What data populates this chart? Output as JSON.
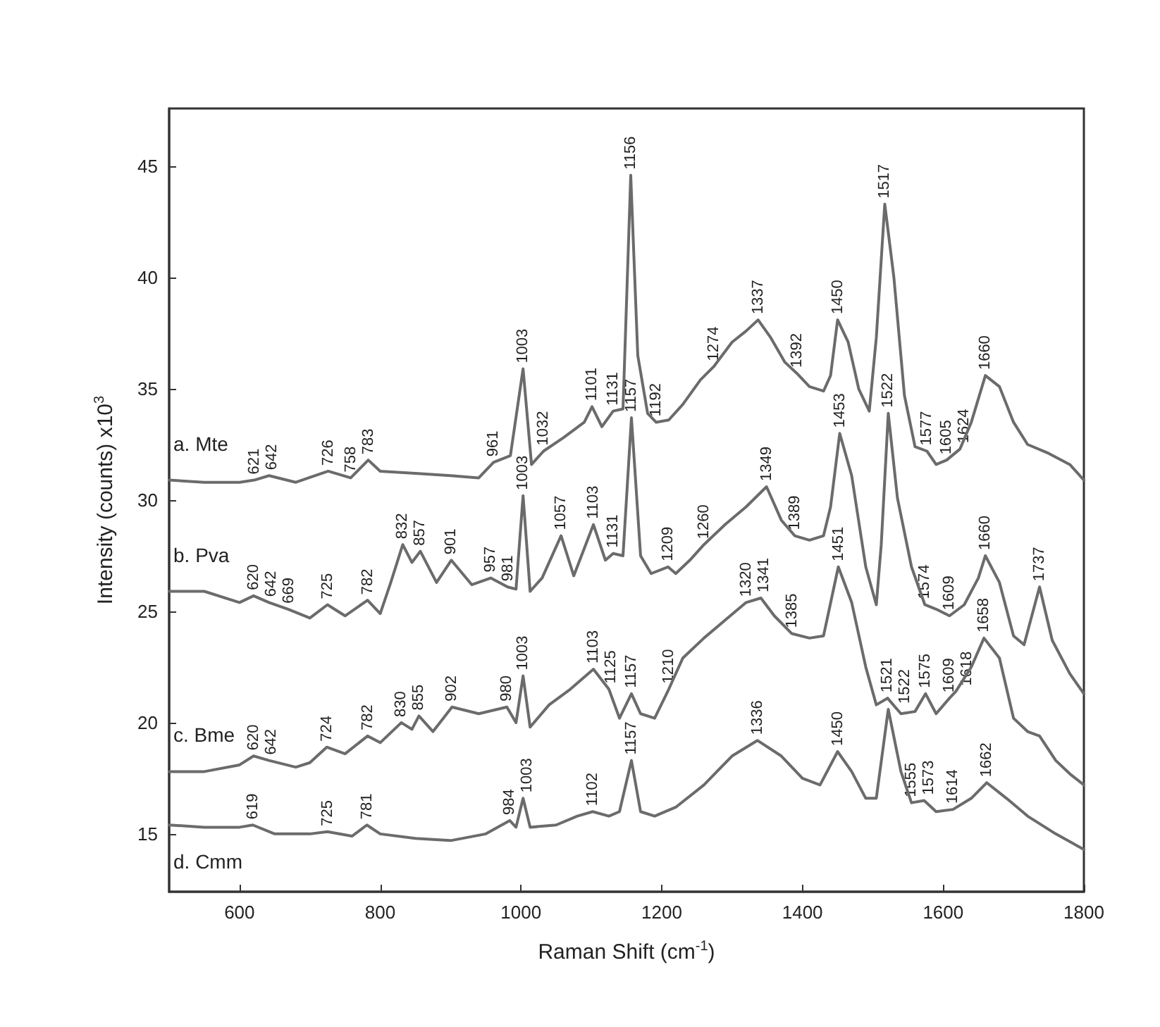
{
  "chart_data": {
    "type": "line",
    "xlabel": "Raman Shift (cm$^{-1}$)",
    "ylabel": "Intensity (counts) x10$^{3}$",
    "xlim": [
      500,
      1800
    ],
    "xticks": [
      600,
      800,
      1000,
      1200,
      1400,
      1600,
      1800
    ],
    "ylim": [
      12.4,
      47.6
    ],
    "yticks": [
      15,
      20,
      25,
      30,
      35,
      40,
      45
    ],
    "grid": false,
    "marker": "none",
    "line_style": "solid",
    "series": [
      {
        "name": "a. Mte",
        "color": "#6b6b6b",
        "x": [
          500,
          550,
          600,
          621,
          642,
          680,
          726,
          758,
          783,
          800,
          850,
          900,
          940,
          961,
          985,
          1003,
          1015,
          1032,
          1060,
          1090,
          1101,
          1115,
          1131,
          1145,
          1156,
          1166,
          1180,
          1192,
          1210,
          1230,
          1255,
          1274,
          1300,
          1320,
          1337,
          1355,
          1375,
          1392,
          1410,
          1430,
          1440,
          1450,
          1465,
          1480,
          1495,
          1505,
          1517,
          1530,
          1545,
          1560,
          1577,
          1590,
          1605,
          1624,
          1640,
          1660,
          1680,
          1700,
          1720,
          1750,
          1780,
          1800
        ],
        "values": [
          30.9,
          30.8,
          30.8,
          30.9,
          31.1,
          30.8,
          31.3,
          31.0,
          31.8,
          31.3,
          31.2,
          31.1,
          31.0,
          31.7,
          32.0,
          35.9,
          31.6,
          32.2,
          32.8,
          33.5,
          34.2,
          33.3,
          34.0,
          34.1,
          44.6,
          36.5,
          33.9,
          33.5,
          33.6,
          34.3,
          35.4,
          36.0,
          37.1,
          37.6,
          38.1,
          37.3,
          36.2,
          35.7,
          35.1,
          34.9,
          35.6,
          38.1,
          37.1,
          35.0,
          34.0,
          37.3,
          43.3,
          40.0,
          34.7,
          32.4,
          32.2,
          31.6,
          31.8,
          32.3,
          33.5,
          35.6,
          35.1,
          33.5,
          32.5,
          32.1,
          31.6,
          30.9
        ]
      },
      {
        "name": "b. Pva",
        "color": "#6b6b6b",
        "x": [
          500,
          550,
          600,
          620,
          642,
          669,
          700,
          725,
          750,
          782,
          800,
          815,
          832,
          845,
          857,
          880,
          901,
          930,
          957,
          981,
          993,
          1003,
          1013,
          1030,
          1057,
          1075,
          1103,
          1120,
          1131,
          1145,
          1157,
          1170,
          1185,
          1209,
          1220,
          1240,
          1260,
          1290,
          1320,
          1349,
          1370,
          1389,
          1410,
          1430,
          1440,
          1453,
          1470,
          1490,
          1505,
          1512,
          1522,
          1535,
          1555,
          1574,
          1590,
          1609,
          1630,
          1650,
          1660,
          1680,
          1700,
          1715,
          1737,
          1755,
          1780,
          1800
        ],
        "values": [
          25.9,
          25.9,
          25.4,
          25.7,
          25.4,
          25.1,
          24.7,
          25.3,
          24.8,
          25.5,
          24.9,
          26.3,
          28.0,
          27.2,
          27.7,
          26.3,
          27.3,
          26.2,
          26.5,
          26.1,
          26.0,
          30.2,
          25.9,
          26.5,
          28.4,
          26.6,
          28.9,
          27.3,
          27.6,
          27.5,
          33.7,
          27.5,
          26.7,
          27.0,
          26.7,
          27.3,
          28.0,
          28.9,
          29.7,
          30.6,
          29.1,
          28.4,
          28.2,
          28.4,
          29.7,
          33.0,
          31.1,
          27.0,
          25.3,
          28.0,
          33.9,
          30.1,
          27.0,
          25.3,
          25.1,
          24.8,
          25.3,
          26.5,
          27.5,
          26.3,
          23.9,
          23.5,
          26.1,
          23.7,
          22.2,
          21.3
        ]
      },
      {
        "name": "c. Bme",
        "color": "#6b6b6b",
        "x": [
          500,
          550,
          600,
          620,
          642,
          680,
          700,
          724,
          750,
          782,
          800,
          830,
          845,
          855,
          875,
          902,
          940,
          980,
          993,
          1003,
          1013,
          1040,
          1070,
          1103,
          1125,
          1140,
          1157,
          1170,
          1190,
          1210,
          1230,
          1260,
          1290,
          1320,
          1341,
          1360,
          1385,
          1410,
          1430,
          1451,
          1470,
          1490,
          1505,
          1521,
          1540,
          1560,
          1575,
          1590,
          1609,
          1618,
          1640,
          1658,
          1680,
          1700,
          1720,
          1737,
          1760,
          1780,
          1800
        ],
        "values": [
          17.8,
          17.8,
          18.1,
          18.5,
          18.3,
          18.0,
          18.2,
          18.9,
          18.6,
          19.4,
          19.1,
          20.0,
          19.7,
          20.3,
          19.6,
          20.7,
          20.4,
          20.7,
          20.0,
          22.1,
          19.8,
          20.8,
          21.5,
          22.4,
          21.5,
          20.2,
          21.3,
          20.4,
          20.2,
          21.5,
          22.9,
          23.8,
          24.6,
          25.4,
          25.6,
          24.8,
          24.0,
          23.8,
          23.9,
          27.0,
          25.4,
          22.5,
          20.8,
          21.1,
          20.4,
          20.5,
          21.3,
          20.4,
          21.1,
          21.4,
          22.5,
          23.8,
          22.9,
          20.2,
          19.6,
          19.4,
          18.3,
          17.7,
          17.2
        ]
      },
      {
        "name": "d. Cmm",
        "color": "#6b6b6b",
        "x": [
          500,
          550,
          600,
          619,
          650,
          700,
          725,
          760,
          781,
          800,
          850,
          900,
          950,
          984,
          993,
          1003,
          1013,
          1050,
          1080,
          1102,
          1125,
          1140,
          1157,
          1170,
          1190,
          1220,
          1260,
          1300,
          1336,
          1370,
          1400,
          1425,
          1450,
          1470,
          1490,
          1505,
          1522,
          1540,
          1555,
          1573,
          1590,
          1614,
          1640,
          1662,
          1690,
          1720,
          1760,
          1800
        ],
        "values": [
          15.4,
          15.3,
          15.3,
          15.4,
          15.0,
          15.0,
          15.1,
          14.9,
          15.4,
          15.0,
          14.8,
          14.7,
          15.0,
          15.6,
          15.3,
          16.6,
          15.3,
          15.4,
          15.8,
          16.0,
          15.8,
          16.0,
          18.3,
          16.0,
          15.8,
          16.2,
          17.2,
          18.5,
          19.2,
          18.5,
          17.5,
          17.2,
          18.7,
          17.8,
          16.6,
          16.6,
          20.6,
          17.8,
          16.4,
          16.5,
          16.0,
          16.1,
          16.6,
          17.3,
          16.6,
          15.8,
          15.0,
          14.3
        ]
      }
    ],
    "annotations": [
      {
        "text": "621",
        "x": 621,
        "y": 30.9
      },
      {
        "text": "642",
        "x": 642,
        "y": 31.1
      },
      {
        "text": "726",
        "x": 726,
        "y": 31.3
      },
      {
        "text": "758",
        "x": 758,
        "y": 31.0
      },
      {
        "text": "783",
        "x": 783,
        "y": 31.8
      },
      {
        "text": "961",
        "x": 961,
        "y": 31.7
      },
      {
        "text": "1003",
        "x": 1003,
        "y": 35.9
      },
      {
        "text": "1032",
        "x": 1032,
        "y": 32.2
      },
      {
        "text": "1101",
        "x": 1101,
        "y": 34.2
      },
      {
        "text": "1131",
        "x": 1131,
        "y": 34.0
      },
      {
        "text": "1156",
        "x": 1156,
        "y": 44.6
      },
      {
        "text": "1192",
        "x": 1192,
        "y": 33.5
      },
      {
        "text": "1274",
        "x": 1274,
        "y": 36.0
      },
      {
        "text": "1337",
        "x": 1337,
        "y": 38.1
      },
      {
        "text": "1392",
        "x": 1392,
        "y": 35.7
      },
      {
        "text": "1450",
        "x": 1450,
        "y": 38.1
      },
      {
        "text": "1517",
        "x": 1517,
        "y": 43.3
      },
      {
        "text": "1577",
        "x": 1577,
        "y": 32.2
      },
      {
        "text": "1605",
        "x": 1605,
        "y": 31.8
      },
      {
        "text": "1624",
        "x": 1624,
        "y": 32.3
      },
      {
        "text": "1660",
        "x": 1660,
        "y": 35.6
      },
      {
        "text": "620",
        "x": 620,
        "y": 25.7
      },
      {
        "text": "642",
        "x": 642,
        "y": 25.4
      },
      {
        "text": "669",
        "x": 669,
        "y": 25.1
      },
      {
        "text": "725",
        "x": 725,
        "y": 25.3
      },
      {
        "text": "782",
        "x": 782,
        "y": 25.5
      },
      {
        "text": "832",
        "x": 832,
        "y": 28.0
      },
      {
        "text": "857",
        "x": 857,
        "y": 27.7
      },
      {
        "text": "901",
        "x": 901,
        "y": 27.3
      },
      {
        "text": "957",
        "x": 957,
        "y": 26.5
      },
      {
        "text": "981",
        "x": 981,
        "y": 26.1
      },
      {
        "text": "1003",
        "x": 1003,
        "y": 30.2
      },
      {
        "text": "1057",
        "x": 1057,
        "y": 28.4
      },
      {
        "text": "1103",
        "x": 1103,
        "y": 28.9
      },
      {
        "text": "1131",
        "x": 1131,
        "y": 27.6
      },
      {
        "text": "1157",
        "x": 1157,
        "y": 33.7
      },
      {
        "text": "1209",
        "x": 1209,
        "y": 27.0
      },
      {
        "text": "1260",
        "x": 1260,
        "y": 28.0
      },
      {
        "text": "1349",
        "x": 1349,
        "y": 30.6
      },
      {
        "text": "1389",
        "x": 1389,
        "y": 28.4
      },
      {
        "text": "1453",
        "x": 1453,
        "y": 33.0
      },
      {
        "text": "1522",
        "x": 1522,
        "y": 33.9
      },
      {
        "text": "1574",
        "x": 1574,
        "y": 25.3
      },
      {
        "text": "1609",
        "x": 1609,
        "y": 24.8
      },
      {
        "text": "1660",
        "x": 1660,
        "y": 27.5
      },
      {
        "text": "1737",
        "x": 1737,
        "y": 26.1
      },
      {
        "text": "620",
        "x": 620,
        "y": 18.5
      },
      {
        "text": "642",
        "x": 642,
        "y": 18.3
      },
      {
        "text": "724",
        "x": 724,
        "y": 18.9
      },
      {
        "text": "782",
        "x": 782,
        "y": 19.4
      },
      {
        "text": "830",
        "x": 830,
        "y": 20.0
      },
      {
        "text": "855",
        "x": 855,
        "y": 20.3
      },
      {
        "text": "902",
        "x": 902,
        "y": 20.7
      },
      {
        "text": "980",
        "x": 980,
        "y": 20.7
      },
      {
        "text": "1003",
        "x": 1003,
        "y": 22.1
      },
      {
        "text": "1103",
        "x": 1103,
        "y": 22.4
      },
      {
        "text": "1125",
        "x": 1125,
        "y": 21.5
      },
      {
        "text": "1157",
        "x": 1157,
        "y": 21.3
      },
      {
        "text": "1210",
        "x": 1210,
        "y": 21.5
      },
      {
        "text": "1320",
        "x": 1320,
        "y": 25.4
      },
      {
        "text": "1341",
        "x": 1341,
        "y": 25.6
      },
      {
        "text": "1385",
        "x": 1385,
        "y": 24.0
      },
      {
        "text": "1451",
        "x": 1451,
        "y": 27.0
      },
      {
        "text": "1521",
        "x": 1521,
        "y": 21.1
      },
      {
        "text": "1575",
        "x": 1575,
        "y": 21.3
      },
      {
        "text": "1609",
        "x": 1609,
        "y": 21.1
      },
      {
        "text": "1618",
        "x": 1618,
        "y": 21.4
      },
      {
        "text": "1658",
        "x": 1658,
        "y": 23.8
      },
      {
        "text": "619",
        "x": 619,
        "y": 15.4
      },
      {
        "text": "725",
        "x": 725,
        "y": 15.1
      },
      {
        "text": "781",
        "x": 781,
        "y": 15.4
      },
      {
        "text": "984",
        "x": 984,
        "y": 15.6
      },
      {
        "text": "1003",
        "x": 1003,
        "y": 16.6
      },
      {
        "text": "1102",
        "x": 1102,
        "y": 16.0
      },
      {
        "text": "1157",
        "x": 1157,
        "y": 18.3
      },
      {
        "text": "1336",
        "x": 1336,
        "y": 19.2
      },
      {
        "text": "1450",
        "x": 1450,
        "y": 18.7
      },
      {
        "text": "1522",
        "x": 1522,
        "y": 20.6
      },
      {
        "text": "1555",
        "x": 1555,
        "y": 16.4
      },
      {
        "text": "1573",
        "x": 1573,
        "y": 16.5
      },
      {
        "text": "1614",
        "x": 1614,
        "y": 16.1
      },
      {
        "text": "1662",
        "x": 1662,
        "y": 17.3
      }
    ]
  }
}
